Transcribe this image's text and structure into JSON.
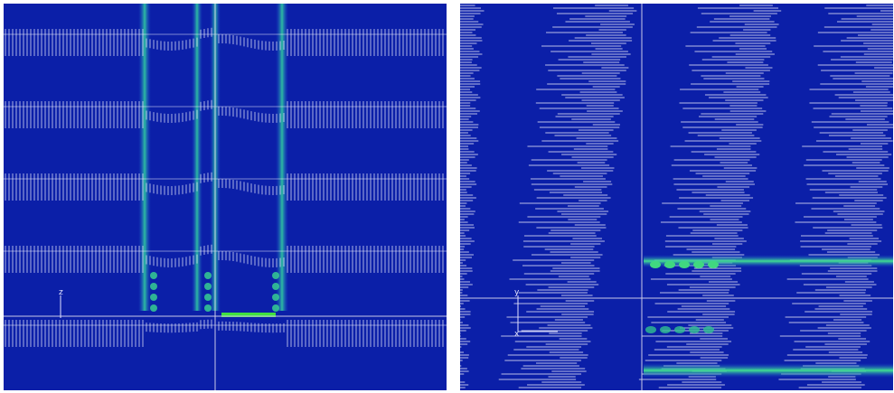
{
  "left_panel": {
    "axis_label": "z"
  },
  "right_panel": {
    "axis_labels": [
      "y",
      "x"
    ]
  }
}
